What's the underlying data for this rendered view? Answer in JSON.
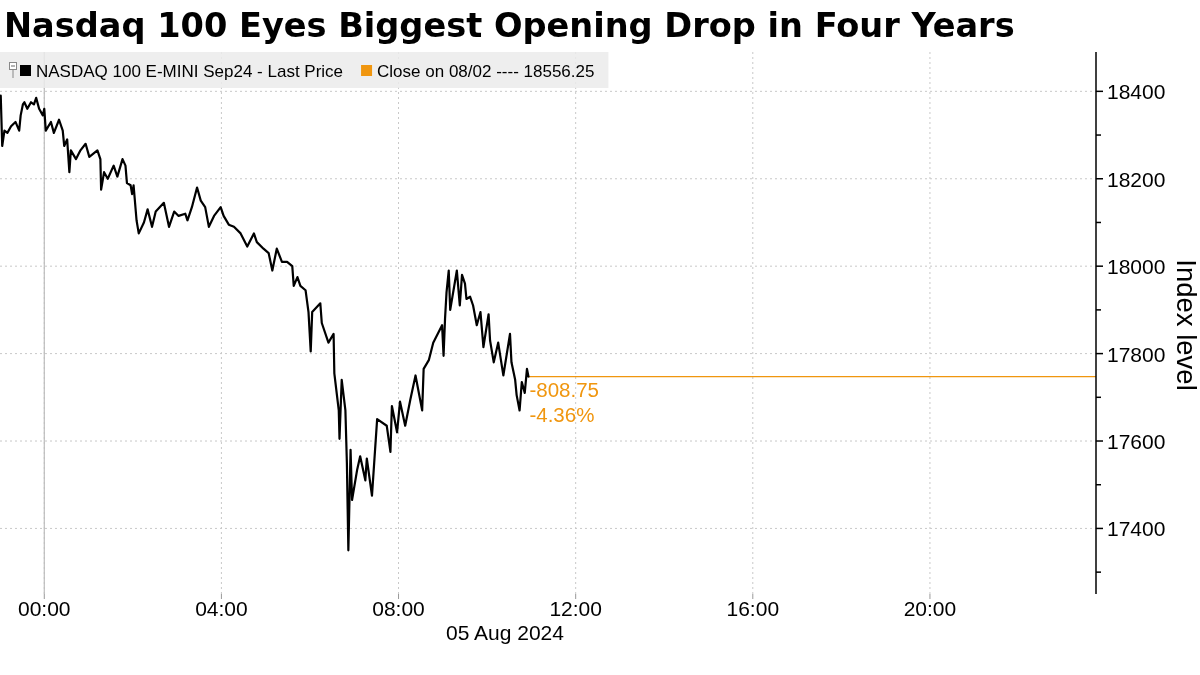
{
  "chart_data": {
    "type": "line",
    "title": "Nasdaq 100 Eyes Biggest Opening Drop in Four Years",
    "xlabel": "05 Aug 2024",
    "ylabel": "Index level",
    "x": [
      "2024-08-04T23:01",
      "2024-08-04T23:03",
      "2024-08-04T23:06",
      "2024-08-04T23:10",
      "2024-08-04T23:15",
      "2024-08-04T23:21",
      "2024-08-04T23:26",
      "2024-08-04T23:28",
      "2024-08-04T23:31",
      "2024-08-04T23:33",
      "2024-08-04T23:37",
      "2024-08-04T23:42",
      "2024-08-04T23:46",
      "2024-08-04T23:49",
      "2024-08-04T23:53",
      "2024-08-04T23:58",
      "2024-08-05T00:00",
      "2024-08-05T00:02",
      "2024-08-05T00:09",
      "2024-08-05T00:13",
      "2024-08-05T00:20",
      "2024-08-05T00:25",
      "2024-08-05T00:27",
      "2024-08-05T00:31",
      "2024-08-05T00:34",
      "2024-08-05T00:36",
      "2024-08-05T00:43",
      "2024-08-05T00:49",
      "2024-08-05T00:56",
      "2024-08-05T01:01",
      "2024-08-05T01:12",
      "2024-08-05T01:16",
      "2024-08-05T01:17",
      "2024-08-05T01:21",
      "2024-08-05T01:26",
      "2024-08-05T01:34",
      "2024-08-05T01:39",
      "2024-08-05T01:46",
      "2024-08-05T01:50",
      "2024-08-05T01:52",
      "2024-08-05T01:57",
      "2024-08-05T01:59",
      "2024-08-05T02:01",
      "2024-08-05T02:05",
      "2024-08-05T02:08",
      "2024-08-05T02:15",
      "2024-08-05T02:20",
      "2024-08-05T02:26",
      "2024-08-05T02:31",
      "2024-08-05T02:42",
      "2024-08-05T02:49",
      "2024-08-05T02:56",
      "2024-08-05T03:02",
      "2024-08-05T03:11",
      "2024-08-05T03:14",
      "2024-08-05T03:20",
      "2024-08-05T03:27",
      "2024-08-05T03:32",
      "2024-08-05T03:38",
      "2024-08-05T03:43",
      "2024-08-05T03:50",
      "2024-08-05T03:59",
      "2024-08-05T04:03",
      "2024-08-05T04:10",
      "2024-08-05T04:17",
      "2024-08-05T04:26",
      "2024-08-05T04:35",
      "2024-08-05T04:44",
      "2024-08-05T04:48",
      "2024-08-05T04:57",
      "2024-08-05T05:04",
      "2024-08-05T05:09",
      "2024-08-05T05:15",
      "2024-08-05T05:22",
      "2024-08-05T05:29",
      "2024-08-05T05:36",
      "2024-08-05T05:38",
      "2024-08-05T05:43",
      "2024-08-05T05:47",
      "2024-08-05T05:54",
      "2024-08-05T05:58",
      "2024-08-05T06:01",
      "2024-08-05T06:03",
      "2024-08-05T06:14",
      "2024-08-05T06:16",
      "2024-08-05T06:25",
      "2024-08-05T06:32",
      "2024-08-05T06:33",
      "2024-08-05T06:39",
      "2024-08-05T06:40",
      "2024-08-05T06:43",
      "2024-08-05T06:48",
      "2024-08-05T06:50",
      "2024-08-05T06:52",
      "2024-08-05T06:55",
      "2024-08-05T06:57",
      "2024-08-05T07:04",
      "2024-08-05T07:08",
      "2024-08-05T07:15",
      "2024-08-05T07:17",
      "2024-08-05T07:24",
      "2024-08-05T07:28",
      "2024-08-05T07:31",
      "2024-08-05T07:44",
      "2024-08-05T07:49",
      "2024-08-05T07:51",
      "2024-08-05T07:58",
      "2024-08-05T08:02",
      "2024-08-05T08:09",
      "2024-08-05T08:16",
      "2024-08-05T08:23",
      "2024-08-05T08:32",
      "2024-08-05T08:34",
      "2024-08-05T08:41",
      "2024-08-05T08:47",
      "2024-08-05T08:59",
      "2024-08-05T09:01",
      "2024-08-05T09:03",
      "2024-08-05T09:05",
      "2024-08-05T09:08",
      "2024-08-05T09:10",
      "2024-08-05T09:19",
      "2024-08-05T09:23",
      "2024-08-05T09:26",
      "2024-08-05T09:30",
      "2024-08-05T09:32",
      "2024-08-05T09:37",
      "2024-08-05T09:41",
      "2024-08-05T09:46",
      "2024-08-05T09:51",
      "2024-08-05T09:55",
      "2024-08-05T10:02",
      "2024-08-05T10:04",
      "2024-08-05T10:09",
      "2024-08-05T10:15",
      "2024-08-05T10:22",
      "2024-08-05T10:31",
      "2024-08-05T10:33",
      "2024-08-05T10:38",
      "2024-08-05T10:40",
      "2024-08-05T10:44",
      "2024-08-05T10:47",
      "2024-08-05T10:51",
      "2024-08-05T10:54",
      "2024-08-05T10:56"
    ],
    "series": [
      {
        "name": "NASDAQ 100 E-MINI Sep24 - Last Price",
        "color": "#000000",
        "values": [
          18390,
          18275,
          18310,
          18305,
          18320,
          18330,
          18310,
          18345,
          18370,
          18375,
          18360,
          18375,
          18370,
          18385,
          18360,
          18345,
          18360,
          18310,
          18330,
          18305,
          18335,
          18310,
          18275,
          18290,
          18215,
          18265,
          18245,
          18265,
          18280,
          18250,
          18265,
          18245,
          18175,
          18215,
          18200,
          18230,
          18205,
          18245,
          18230,
          18190,
          18185,
          18165,
          18185,
          18105,
          18075,
          18100,
          18130,
          18090,
          18125,
          18145,
          18090,
          18125,
          18115,
          18120,
          18105,
          18135,
          18180,
          18150,
          18135,
          18090,
          18115,
          18135,
          18115,
          18095,
          18090,
          18075,
          18045,
          18075,
          18055,
          18040,
          18030,
          17990,
          18040,
          18010,
          18010,
          18000,
          17955,
          17975,
          17955,
          17945,
          17895,
          17805,
          17895,
          17915,
          17870,
          17825,
          17845,
          17755,
          17670,
          17605,
          17740,
          17670,
          17550,
          17350,
          17580,
          17465,
          17535,
          17565,
          17510,
          17560,
          17475,
          17575,
          17650,
          17635,
          17575,
          17680,
          17620,
          17690,
          17635,
          17695,
          17750,
          17670,
          17765,
          17785,
          17825,
          17865,
          17795,
          17880,
          17940,
          17990,
          17900,
          17990,
          17910,
          17980,
          17960,
          17925,
          17930,
          17910,
          17865,
          17895,
          17815,
          17890,
          17830,
          17780,
          17825,
          17750,
          17845,
          17780,
          17740,
          17705,
          17670,
          17735,
          17710,
          17765,
          17747.5
        ]
      }
    ],
    "xlim": [
      "2024-08-04T23:00",
      "2024-08-05T23:45"
    ],
    "xticks": [
      {
        "value": "2024-08-05T00:00",
        "label": "00:00"
      },
      {
        "value": "2024-08-05T04:00",
        "label": "04:00"
      },
      {
        "value": "2024-08-05T08:00",
        "label": "08:00"
      },
      {
        "value": "2024-08-05T12:00",
        "label": "12:00"
      },
      {
        "value": "2024-08-05T16:00",
        "label": "16:00"
      },
      {
        "value": "2024-08-05T20:00",
        "label": "20:00"
      }
    ],
    "ylim": [
      17250,
      18490
    ],
    "yticks": [
      {
        "value": 17300,
        "label": null
      },
      17400,
      {
        "value": 17500,
        "label": null
      },
      17600,
      {
        "value": 17700,
        "label": null
      },
      17800,
      {
        "value": 17900,
        "label": null
      },
      18000,
      {
        "value": 18100,
        "label": null
      },
      18200,
      {
        "value": 18300,
        "label": null
      },
      18400
    ],
    "grid": true,
    "legend": "top left",
    "ref_lines": [
      {
        "axis": "x",
        "value": "2024-08-05T00:00",
        "color": "#bdbdbd"
      },
      {
        "axis": "y",
        "value": 17747.5,
        "label": "Close on 08/02 ---- 18556.25",
        "color": "#f0960f"
      }
    ],
    "annotations": [
      {
        "text": "-808.75",
        "x": "2024-08-05T10:56",
        "y": 17747.5
      },
      {
        "text": "-4.36%",
        "x": "2024-08-05T10:56",
        "y": 17747.5
      }
    ]
  }
}
